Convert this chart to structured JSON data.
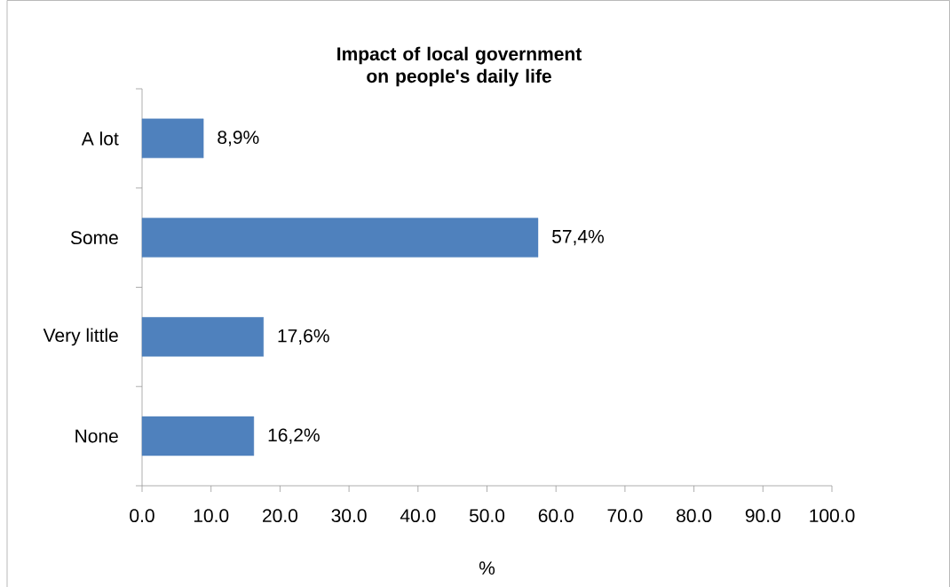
{
  "chart_data": {
    "type": "bar",
    "orientation": "horizontal",
    "title": "Impact of local government on people's daily life",
    "xlabel": "%",
    "categories": [
      "A lot",
      "Some",
      "Very little",
      "None"
    ],
    "values": [
      8.9,
      57.4,
      17.6,
      16.2
    ],
    "value_labels": [
      "8,9%",
      "57,4%",
      "17,6%",
      "16,2%"
    ],
    "color": "#4f81bd",
    "xlim": [
      0,
      100
    ],
    "xticks": [
      {
        "value": 0,
        "label": "0.0"
      },
      {
        "value": 10,
        "label": "10.0"
      },
      {
        "value": 20,
        "label": "20.0"
      },
      {
        "value": 30,
        "label": "30.0"
      },
      {
        "value": 40,
        "label": "40.0"
      },
      {
        "value": 50,
        "label": "50.0"
      },
      {
        "value": 60,
        "label": "60.0"
      },
      {
        "value": 70,
        "label": "70.0"
      },
      {
        "value": 80,
        "label": "80.0"
      },
      {
        "value": 90,
        "label": "90.0"
      },
      {
        "value": 100,
        "label": "100.0"
      }
    ]
  }
}
